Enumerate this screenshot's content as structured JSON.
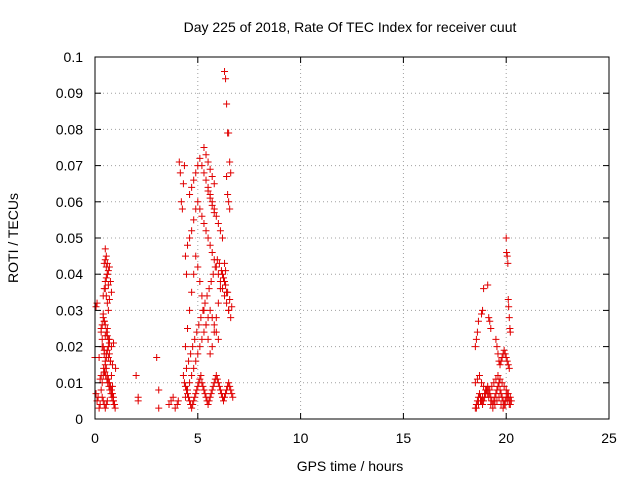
{
  "chart_data": {
    "type": "scatter",
    "title": "Day 225 of 2018, Rate Of TEC Index for receiver cuut",
    "xlabel": "GPS time / hours",
    "ylabel": "ROTI / TECUs",
    "xlim": [
      0,
      25
    ],
    "ylim": [
      0,
      0.1
    ],
    "x_ticks": [
      0,
      5,
      10,
      15,
      20,
      25
    ],
    "x_tick_labels": [
      "0",
      "5",
      "10",
      "15",
      "20",
      "25"
    ],
    "y_ticks": [
      0,
      0.01,
      0.02,
      0.03,
      0.04,
      0.05,
      0.06,
      0.07,
      0.08,
      0.09,
      0.1
    ],
    "y_tick_labels": [
      "0",
      "0.01",
      "0.02",
      "0.03",
      "0.04",
      "0.05",
      "0.06",
      "0.07",
      "0.08",
      "0.09",
      "0.1"
    ],
    "grid": true,
    "marker": "+",
    "color": "#e00000",
    "series": [
      {
        "x": [
          0.05,
          0.1,
          0.15,
          0.2,
          0.25,
          0.3,
          0.35,
          0.4,
          0.45,
          0.5,
          0.55,
          0.6,
          0.65,
          0.7,
          0.75,
          0.8,
          0.85,
          0.9,
          0.95,
          0.3,
          0.35,
          0.4,
          0.45,
          0.5,
          0.55,
          0.6,
          0.65,
          0.7,
          0.75,
          0.8,
          0.85,
          0.9,
          0.4,
          0.45,
          0.5,
          0.55,
          0.6,
          0.65,
          0.7,
          0.75,
          0.8,
          0.45,
          0.5,
          0.55,
          0.6,
          0.65,
          0.7,
          0.5,
          0.55,
          0.6,
          0.4,
          0.45,
          0.5,
          0.55,
          0.6,
          0.65,
          0.7,
          0.35,
          0.4,
          0.45,
          0.5,
          0.55,
          0.6,
          0.42,
          0.48,
          0.52,
          0.58,
          0.62,
          0.68,
          0.72,
          0.78,
          0.82,
          0.88,
          0.92,
          0.98,
          0.35,
          0.45,
          0.55,
          0.65,
          0.75,
          0.85,
          0.3,
          0.5,
          0.7,
          0.9,
          0.2,
          0.6,
          0.8,
          1.0,
          0.0,
          0.05,
          0.1,
          0.5,
          0.55,
          0.6,
          0.65,
          0.4,
          0.45,
          0.35,
          0.3,
          0.25
        ],
        "y": [
          0.031,
          0.032,
          0.006,
          0.003,
          0.004,
          0.008,
          0.01,
          0.012,
          0.013,
          0.015,
          0.017,
          0.019,
          0.02,
          0.018,
          0.016,
          0.012,
          0.009,
          0.006,
          0.004,
          0.025,
          0.022,
          0.02,
          0.018,
          0.016,
          0.014,
          0.012,
          0.011,
          0.01,
          0.009,
          0.008,
          0.007,
          0.005,
          0.034,
          0.036,
          0.038,
          0.039,
          0.04,
          0.041,
          0.042,
          0.038,
          0.035,
          0.043,
          0.044,
          0.042,
          0.04,
          0.037,
          0.033,
          0.047,
          0.045,
          0.043,
          0.028,
          0.027,
          0.026,
          0.024,
          0.023,
          0.022,
          0.021,
          0.006,
          0.005,
          0.004,
          0.003,
          0.004,
          0.005,
          0.014,
          0.013,
          0.012,
          0.011,
          0.01,
          0.009,
          0.008,
          0.007,
          0.006,
          0.005,
          0.004,
          0.003,
          0.02,
          0.019,
          0.018,
          0.017,
          0.016,
          0.015,
          0.024,
          0.023,
          0.022,
          0.021,
          0.017,
          0.025,
          0.02,
          0.014,
          0.017,
          0.007,
          0.005,
          0.036,
          0.034,
          0.032,
          0.03,
          0.029,
          0.027,
          0.026,
          0.012,
          0.011
        ]
      },
      {
        "x": [
          2.0,
          2.1,
          2.1,
          3.0,
          3.1,
          3.1,
          3.6,
          3.7,
          3.8,
          3.9,
          4.0,
          4.05,
          4.1,
          4.15,
          4.2,
          4.25,
          4.3,
          4.35,
          4.4,
          4.45
        ],
        "y": [
          0.012,
          0.006,
          0.005,
          0.017,
          0.008,
          0.003,
          0.004,
          0.005,
          0.006,
          0.003,
          0.004,
          0.005,
          0.071,
          0.068,
          0.06,
          0.058,
          0.065,
          0.07,
          0.045,
          0.04
        ]
      },
      {
        "x": [
          4.3,
          4.35,
          4.4,
          4.45,
          4.5,
          4.55,
          4.6,
          4.65,
          4.7,
          4.75,
          4.8,
          4.85,
          4.9,
          4.95,
          5.0,
          5.05,
          5.1,
          5.15,
          5.2,
          5.25,
          5.3,
          5.35,
          5.4,
          5.45,
          5.5,
          5.55,
          5.6,
          5.65,
          5.7,
          5.75,
          5.8,
          5.85,
          5.9,
          5.95,
          6.0,
          6.05,
          6.1,
          6.15,
          6.2,
          6.25,
          6.3,
          6.35,
          6.4,
          6.45,
          6.5,
          6.55,
          6.6,
          6.65,
          6.7,
          4.4,
          4.5,
          4.6,
          4.7,
          4.8,
          4.9,
          5.0,
          5.1,
          5.2,
          5.3,
          5.4,
          5.5,
          5.6,
          5.7,
          5.8,
          5.9,
          6.0,
          6.1,
          6.2,
          6.3,
          6.4,
          6.5,
          6.6,
          4.45,
          4.55,
          4.65,
          4.75,
          4.85,
          4.95,
          5.05,
          5.15,
          5.25,
          5.35,
          5.45,
          5.55,
          5.65,
          5.75,
          5.85,
          5.95,
          6.05,
          6.15,
          6.25,
          6.35,
          6.45,
          6.55,
          6.65,
          4.5,
          4.6,
          4.7,
          4.8,
          4.9,
          5.0,
          5.1,
          5.2,
          5.3,
          5.4,
          5.5,
          5.6,
          5.7,
          5.8,
          5.9,
          6.0,
          6.1,
          6.2,
          6.3,
          6.4,
          6.5,
          4.4,
          4.5,
          4.6,
          4.7,
          4.8,
          4.9,
          5.0,
          5.1,
          5.2,
          5.3,
          5.4,
          5.5,
          5.6,
          5.7,
          5.8,
          5.9,
          6.0,
          4.6,
          4.7,
          4.8,
          4.9,
          5.0,
          5.1,
          5.2,
          5.3,
          5.4,
          5.5,
          5.6,
          5.7,
          5.8,
          5.9,
          6.0,
          6.1,
          6.2,
          5.3,
          5.4,
          5.5,
          5.6,
          5.7,
          5.8,
          5.5,
          5.6,
          5.7,
          5.8,
          6.3,
          6.35,
          6.4,
          6.45,
          6.5,
          6.55,
          6.6,
          6.4,
          6.45,
          6.5,
          6.55,
          6.3,
          6.35
        ],
        "y": [
          0.012,
          0.01,
          0.009,
          0.008,
          0.007,
          0.006,
          0.005,
          0.004,
          0.003,
          0.004,
          0.005,
          0.006,
          0.007,
          0.008,
          0.009,
          0.01,
          0.011,
          0.012,
          0.01,
          0.009,
          0.008,
          0.007,
          0.006,
          0.005,
          0.004,
          0.005,
          0.006,
          0.007,
          0.008,
          0.009,
          0.01,
          0.011,
          0.012,
          0.011,
          0.01,
          0.009,
          0.008,
          0.007,
          0.006,
          0.005,
          0.006,
          0.007,
          0.008,
          0.009,
          0.01,
          0.009,
          0.008,
          0.007,
          0.006,
          0.02,
          0.025,
          0.03,
          0.035,
          0.04,
          0.045,
          0.042,
          0.038,
          0.034,
          0.03,
          0.026,
          0.022,
          0.018,
          0.02,
          0.024,
          0.028,
          0.032,
          0.036,
          0.04,
          0.038,
          0.035,
          0.03,
          0.028,
          0.014,
          0.016,
          0.018,
          0.02,
          0.022,
          0.024,
          0.026,
          0.028,
          0.03,
          0.032,
          0.034,
          0.036,
          0.038,
          0.04,
          0.042,
          0.044,
          0.043,
          0.041,
          0.039,
          0.037,
          0.035,
          0.033,
          0.031,
          0.048,
          0.05,
          0.052,
          0.055,
          0.058,
          0.06,
          0.058,
          0.056,
          0.054,
          0.052,
          0.05,
          0.048,
          0.046,
          0.044,
          0.042,
          0.04,
          0.038,
          0.036,
          0.034,
          0.032,
          0.03,
          0.006,
          0.008,
          0.01,
          0.012,
          0.014,
          0.016,
          0.018,
          0.02,
          0.022,
          0.024,
          0.026,
          0.028,
          0.03,
          0.028,
          0.026,
          0.024,
          0.022,
          0.062,
          0.064,
          0.066,
          0.068,
          0.07,
          0.072,
          0.07,
          0.068,
          0.066,
          0.064,
          0.062,
          0.06,
          0.058,
          0.056,
          0.054,
          0.052,
          0.05,
          0.075,
          0.073,
          0.071,
          0.069,
          0.067,
          0.065,
          0.063,
          0.061,
          0.059,
          0.057,
          0.096,
          0.094,
          0.087,
          0.079,
          0.079,
          0.071,
          0.068,
          0.067,
          0.062,
          0.06,
          0.058,
          0.043,
          0.041
        ]
      },
      {
        "x": [
          18.5,
          18.55,
          18.6,
          18.65,
          18.7,
          18.75,
          18.8,
          18.85,
          18.9,
          18.95,
          19.0,
          19.05,
          19.1,
          19.15,
          19.2,
          19.25,
          19.3,
          19.35,
          19.4,
          19.45,
          19.5,
          19.55,
          19.6,
          19.65,
          19.7,
          19.75,
          19.8,
          19.85,
          19.9,
          19.95,
          20.0,
          20.05,
          20.1,
          20.15,
          20.2,
          20.25,
          18.5,
          18.6,
          18.7,
          18.8,
          18.9,
          19.0,
          19.1,
          19.2,
          19.3,
          19.4,
          19.5,
          19.6,
          19.7,
          19.8,
          19.9,
          20.0,
          20.1,
          20.2,
          18.55,
          18.65,
          18.75,
          18.85,
          18.95,
          19.05,
          19.15,
          19.25,
          19.35,
          19.45,
          19.55,
          19.65,
          19.75,
          19.85,
          19.95,
          20.05,
          20.15,
          18.5,
          18.55,
          18.6,
          18.65,
          18.8,
          18.85,
          18.9,
          19.1,
          19.15,
          19.2,
          19.25,
          19.5,
          19.55,
          19.6,
          19.65,
          19.7,
          19.75,
          19.8,
          19.85,
          19.9,
          19.95,
          20.0,
          20.05,
          20.1,
          20.15,
          20.0,
          20.02,
          20.05,
          20.08,
          20.1,
          20.12,
          20.15,
          20.18,
          20.2
        ],
        "y": [
          0.003,
          0.004,
          0.005,
          0.006,
          0.007,
          0.006,
          0.005,
          0.004,
          0.005,
          0.006,
          0.007,
          0.008,
          0.009,
          0.008,
          0.007,
          0.006,
          0.005,
          0.004,
          0.005,
          0.006,
          0.007,
          0.008,
          0.009,
          0.01,
          0.008,
          0.007,
          0.006,
          0.005,
          0.004,
          0.005,
          0.006,
          0.007,
          0.006,
          0.005,
          0.004,
          0.005,
          0.01,
          0.011,
          0.012,
          0.01,
          0.009,
          0.008,
          0.007,
          0.008,
          0.009,
          0.01,
          0.011,
          0.012,
          0.011,
          0.01,
          0.009,
          0.008,
          0.007,
          0.006,
          0.003,
          0.004,
          0.005,
          0.006,
          0.007,
          0.008,
          0.006,
          0.004,
          0.003,
          0.004,
          0.005,
          0.006,
          0.004,
          0.003,
          0.004,
          0.005,
          0.004,
          0.02,
          0.022,
          0.024,
          0.027,
          0.029,
          0.03,
          0.036,
          0.037,
          0.028,
          0.027,
          0.025,
          0.022,
          0.02,
          0.018,
          0.016,
          0.015,
          0.016,
          0.017,
          0.018,
          0.019,
          0.018,
          0.017,
          0.016,
          0.015,
          0.014,
          0.05,
          0.046,
          0.045,
          0.043,
          0.033,
          0.031,
          0.028,
          0.025,
          0.024
        ]
      }
    ]
  }
}
